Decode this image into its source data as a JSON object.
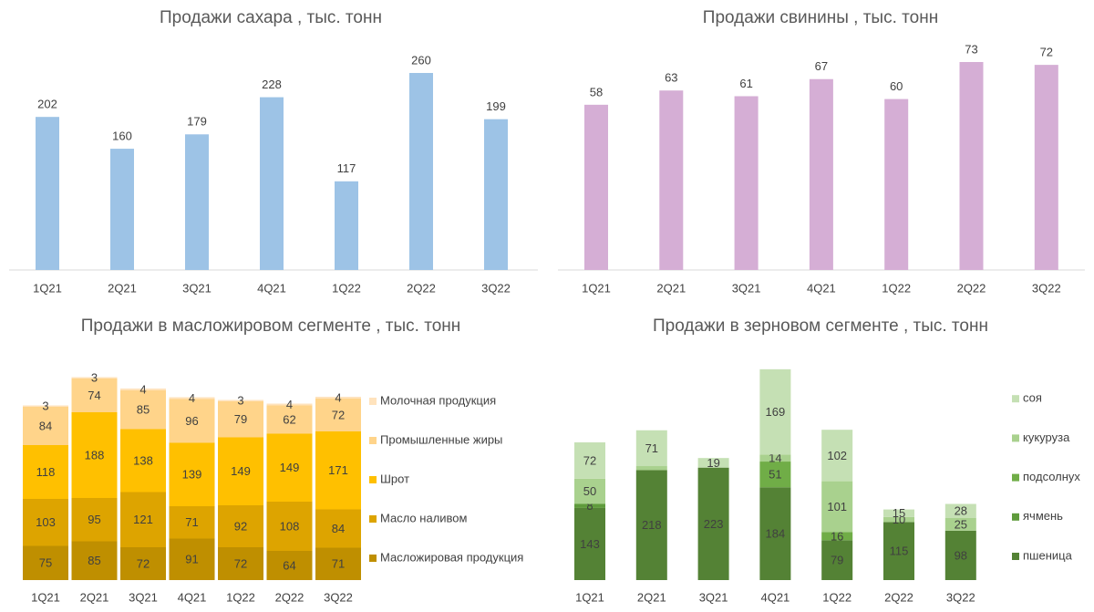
{
  "chart_data": [
    {
      "type": "bar",
      "title": "Продажи сахара , тыс. тонн",
      "categories": [
        "1Q21",
        "2Q21",
        "3Q21",
        "4Q21",
        "1Q22",
        "2Q22",
        "3Q22"
      ],
      "values": [
        202,
        160,
        179,
        228,
        117,
        260,
        199
      ],
      "color": "#9dc3e6"
    },
    {
      "type": "bar",
      "title": "Продажи свинины , тыс. тонн",
      "categories": [
        "1Q21",
        "2Q21",
        "3Q21",
        "4Q21",
        "1Q22",
        "2Q22",
        "3Q22"
      ],
      "values": [
        58,
        63,
        61,
        67,
        60,
        73,
        72
      ],
      "color": "#d5aed5"
    },
    {
      "type": "stacked_bar",
      "title": "Продажи в масложировом сегменте , тыс. тонн",
      "categories": [
        "1Q21",
        "2Q21",
        "3Q21",
        "4Q21",
        "1Q22",
        "2Q22",
        "3Q22"
      ],
      "series": [
        {
          "name": "Масложировая продукция",
          "color": "#bf8f00",
          "values": [
            75,
            85,
            72,
            91,
            72,
            64,
            71
          ]
        },
        {
          "name": "Масло наливом",
          "color": "#dda400",
          "values": [
            103,
            95,
            121,
            71,
            92,
            108,
            84
          ]
        },
        {
          "name": "Шрот",
          "color": "#ffc000",
          "values": [
            118,
            188,
            138,
            139,
            149,
            149,
            171
          ]
        },
        {
          "name": "Промышленные жиры",
          "color": "#ffd48a",
          "values": [
            84,
            74,
            85,
            96,
            79,
            62,
            72
          ]
        },
        {
          "name": "Молочная продукция",
          "color": "#ffe3bd",
          "values": [
            3,
            3,
            4,
            4,
            3,
            4,
            4
          ]
        }
      ],
      "legend": "right"
    },
    {
      "type": "stacked_bar",
      "title": "Продажи в зерновом сегменте , тыс. тонн",
      "categories": [
        "1Q21",
        "2Q21",
        "3Q21",
        "4Q21",
        "1Q22",
        "2Q22",
        "3Q22"
      ],
      "series": [
        {
          "name": "пшеница",
          "color": "#548235",
          "values": [
            143,
            218,
            223,
            184,
            79,
            115,
            98
          ]
        },
        {
          "name": "ячмень",
          "color": "#5f9b3c",
          "values": [
            8,
            null,
            null,
            null,
            null,
            null,
            null
          ]
        },
        {
          "name": "подсолнух",
          "color": "#70ad47",
          "values": [
            null,
            null,
            null,
            51,
            16,
            null,
            null
          ]
        },
        {
          "name": "кукуруза",
          "color": "#a9d18e",
          "values": [
            50,
            8,
            null,
            14,
            101,
            10,
            25
          ],
          "value_labels": [
            "50",
            null,
            null,
            "14",
            "101",
            "10",
            "25"
          ]
        },
        {
          "name": "соя",
          "color": "#c5e0b4",
          "values": [
            72,
            71,
            19,
            169,
            102,
            15,
            28
          ]
        }
      ],
      "legend": "right"
    }
  ]
}
